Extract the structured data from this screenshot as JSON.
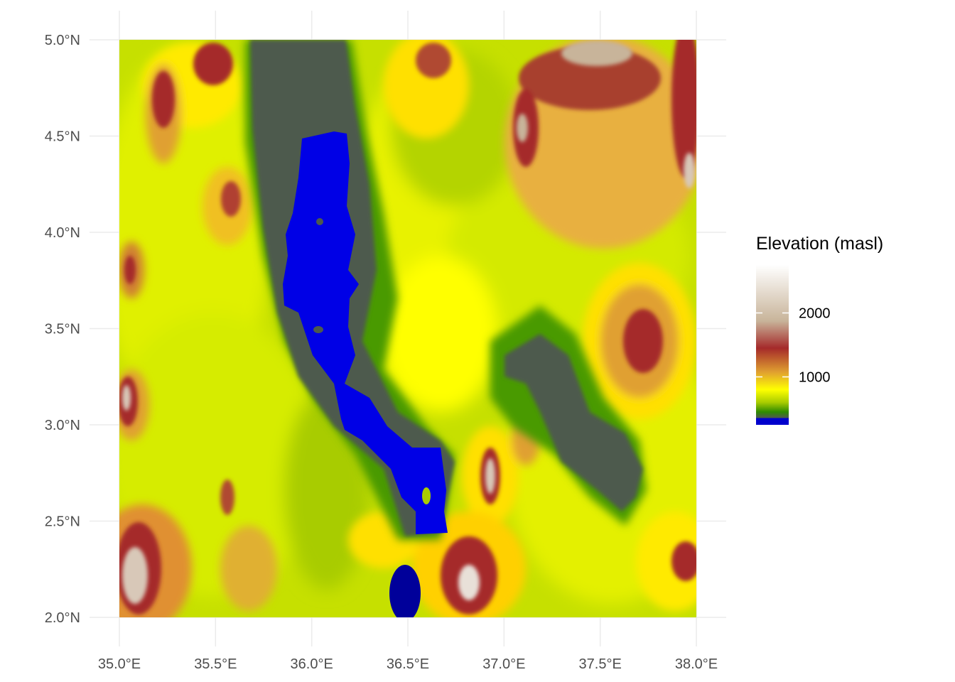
{
  "map": {
    "x_axis": {
      "ticks": [
        {
          "value": 35.0,
          "label": "35.0°E"
        },
        {
          "value": 35.5,
          "label": "35.5°E"
        },
        {
          "value": 36.0,
          "label": "36.0°E"
        },
        {
          "value": 36.5,
          "label": "36.5°E"
        },
        {
          "value": 37.0,
          "label": "37.0°E"
        },
        {
          "value": 37.5,
          "label": "37.5°E"
        },
        {
          "value": 38.0,
          "label": "38.0°E"
        }
      ],
      "range": [
        35.0,
        38.0
      ]
    },
    "y_axis": {
      "ticks": [
        {
          "value": 2.0,
          "label": "2.0°N"
        },
        {
          "value": 2.5,
          "label": "2.5°N"
        },
        {
          "value": 3.0,
          "label": "3.0°N"
        },
        {
          "value": 3.5,
          "label": "3.5°N"
        },
        {
          "value": 4.0,
          "label": "4.0°N"
        },
        {
          "value": 4.5,
          "label": "4.5°N"
        },
        {
          "value": 5.0,
          "label": "5.0°N"
        }
      ],
      "range": [
        2.0,
        5.0
      ]
    },
    "grid": true,
    "legend": {
      "title": "Elevation (masl)",
      "placement": "right",
      "min": 250,
      "max": 2750,
      "labels": [
        {
          "value": 1000,
          "label": "1000"
        },
        {
          "value": 2000,
          "label": "2000"
        }
      ],
      "colors": {
        "water": "#0000cd",
        "low": "#4d5a4d",
        "green": "#2e8b00",
        "yellowgreen": "#a8cc00",
        "yellow": "#ffff00",
        "orange": "#e0a030",
        "brown": "#a52a2a",
        "tan": "#c8b49a",
        "white": "#ffffff"
      }
    }
  }
}
